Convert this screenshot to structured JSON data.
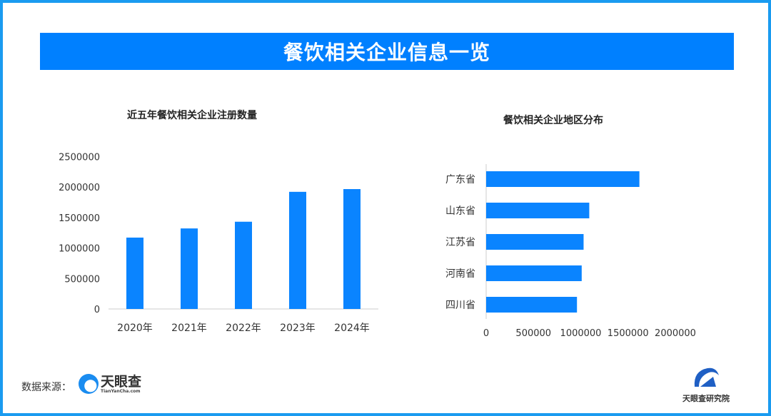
{
  "header": {
    "title": "餐饮相关企业信息一览"
  },
  "colors": {
    "accent": "#0080ff",
    "bar": "#0a84ff",
    "frame": "#1a9bf0"
  },
  "chart_data": [
    {
      "type": "bar",
      "title": "近五年餐饮相关企业注册数量",
      "categories": [
        "2020年",
        "2021年",
        "2022年",
        "2023年",
        "2024年"
      ],
      "values": [
        1170000,
        1320000,
        1430000,
        1920000,
        1965000
      ],
      "ylim": [
        0,
        2500000
      ],
      "yticks": [
        "0",
        "500000",
        "1000000",
        "1500000",
        "2000000",
        "2500000"
      ],
      "grid": false
    },
    {
      "type": "bar",
      "orientation": "horizontal",
      "title": "餐饮相关企业地区分布",
      "categories": [
        "广东省",
        "山东省",
        "江苏省",
        "河南省",
        "四川省"
      ],
      "values": [
        1620000,
        1090000,
        1030000,
        1010000,
        960000
      ],
      "xlim": [
        0,
        2000000
      ],
      "xticks": [
        "0",
        "500000",
        "1000000",
        "1500000",
        "2000000"
      ],
      "grid": false
    }
  ],
  "footer": {
    "source_label": "数据来源：",
    "logo_text": "天眼查",
    "logo_sub": "TianYanCha.com",
    "institute": "天眼查研究院"
  }
}
